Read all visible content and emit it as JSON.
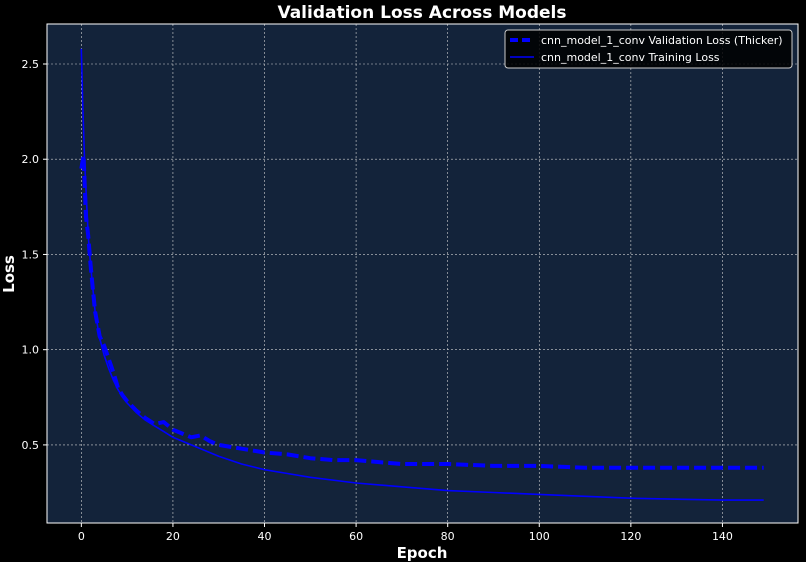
{
  "chart_data": {
    "type": "line",
    "title": "Validation Loss Across Models",
    "xlabel": "Epoch",
    "ylabel": "Loss",
    "xlim": [
      -7.5,
      156.5
    ],
    "ylim": [
      0.09,
      2.71
    ],
    "xticks": [
      0,
      20,
      40,
      60,
      80,
      100,
      120,
      140
    ],
    "yticks": [
      0.5,
      1.0,
      1.5,
      2.0,
      2.5
    ],
    "grid": true,
    "legend_position": "upper right",
    "background_color": "#13233a",
    "figure_color": "#000000",
    "series": [
      {
        "name": "cnn_model_1_conv Validation Loss (Thicker)",
        "color": "#0000ff",
        "style": "dashed",
        "x": [
          0,
          0.5,
          1,
          1.5,
          2,
          2.5,
          3,
          4,
          5,
          6,
          7,
          8,
          9,
          10,
          12,
          14,
          16,
          18,
          20,
          22,
          24,
          26,
          28,
          30,
          35,
          40,
          45,
          50,
          55,
          60,
          65,
          70,
          80,
          90,
          100,
          110,
          120,
          130,
          140,
          149
        ],
        "y": [
          1.95,
          2.02,
          1.7,
          1.6,
          1.45,
          1.32,
          1.2,
          1.07,
          1.02,
          0.95,
          0.88,
          0.8,
          0.76,
          0.73,
          0.68,
          0.64,
          0.61,
          0.62,
          0.58,
          0.56,
          0.54,
          0.55,
          0.52,
          0.5,
          0.48,
          0.46,
          0.45,
          0.43,
          0.42,
          0.42,
          0.41,
          0.4,
          0.4,
          0.39,
          0.39,
          0.38,
          0.38,
          0.38,
          0.38,
          0.38
        ]
      },
      {
        "name": "cnn_model_1_conv Training Loss",
        "color": "#0000ff",
        "style": "solid",
        "x": [
          0,
          0.3,
          0.7,
          1,
          1.5,
          2,
          3,
          4,
          5,
          6,
          7,
          8,
          10,
          12,
          14,
          16,
          18,
          20,
          25,
          30,
          35,
          40,
          45,
          50,
          60,
          70,
          80,
          90,
          100,
          110,
          120,
          130,
          140,
          149
        ],
        "y": [
          2.58,
          2.3,
          2.0,
          1.85,
          1.6,
          1.45,
          1.2,
          1.06,
          0.97,
          0.9,
          0.84,
          0.79,
          0.72,
          0.67,
          0.63,
          0.6,
          0.57,
          0.54,
          0.49,
          0.44,
          0.4,
          0.37,
          0.35,
          0.33,
          0.3,
          0.28,
          0.26,
          0.25,
          0.24,
          0.23,
          0.22,
          0.215,
          0.21,
          0.21
        ]
      }
    ]
  }
}
